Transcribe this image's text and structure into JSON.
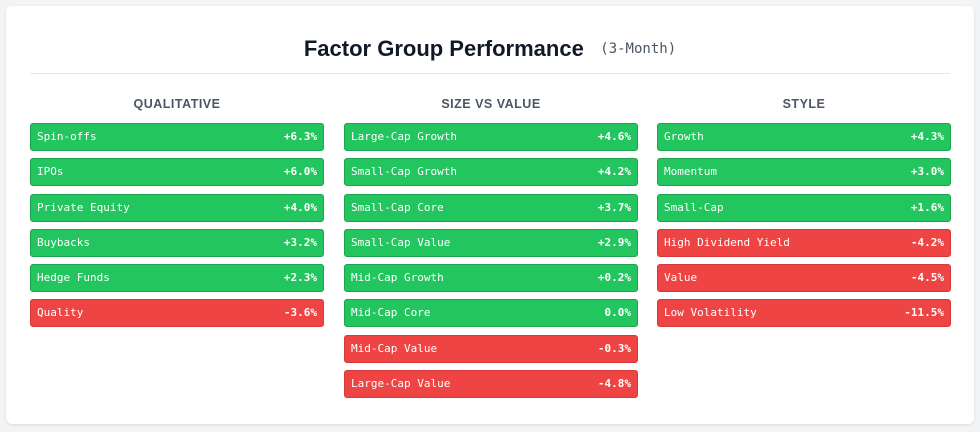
{
  "title": "Factor Group Performance",
  "subtitle": "(3-Month)",
  "colors": {
    "positive": "#22c55e",
    "negative": "#ef4444"
  },
  "chart_data": {
    "type": "table",
    "title": "Factor Group Performance",
    "subtitle": "(3-Month)",
    "groups": [
      {
        "name": "QUALITATIVE",
        "items": [
          {
            "label": "Spin-offs",
            "value": 6.3,
            "display": "+6.3%"
          },
          {
            "label": "IPOs",
            "value": 6.0,
            "display": "+6.0%"
          },
          {
            "label": "Private Equity",
            "value": 4.0,
            "display": "+4.0%"
          },
          {
            "label": "Buybacks",
            "value": 3.2,
            "display": "+3.2%"
          },
          {
            "label": "Hedge Funds",
            "value": 2.3,
            "display": "+2.3%"
          },
          {
            "label": "Quality",
            "value": -3.6,
            "display": "-3.6%"
          }
        ]
      },
      {
        "name": "SIZE VS VALUE",
        "items": [
          {
            "label": "Large-Cap Growth",
            "value": 4.6,
            "display": "+4.6%"
          },
          {
            "label": "Small-Cap Growth",
            "value": 4.2,
            "display": "+4.2%"
          },
          {
            "label": "Small-Cap Core",
            "value": 3.7,
            "display": "+3.7%"
          },
          {
            "label": "Small-Cap Value",
            "value": 2.9,
            "display": "+2.9%"
          },
          {
            "label": "Mid-Cap Growth",
            "value": 0.2,
            "display": "+0.2%"
          },
          {
            "label": "Mid-Cap Core",
            "value": 0.0,
            "display": "0.0%"
          },
          {
            "label": "Mid-Cap Value",
            "value": -0.3,
            "display": "-0.3%"
          },
          {
            "label": "Large-Cap Value",
            "value": -4.8,
            "display": "-4.8%"
          }
        ]
      },
      {
        "name": "STYLE",
        "items": [
          {
            "label": "Growth",
            "value": 4.3,
            "display": "+4.3%"
          },
          {
            "label": "Momentum",
            "value": 3.0,
            "display": "+3.0%"
          },
          {
            "label": "Small-Cap",
            "value": 1.6,
            "display": "+1.6%"
          },
          {
            "label": "High Dividend Yield",
            "value": -4.2,
            "display": "-4.2%"
          },
          {
            "label": "Value",
            "value": -4.5,
            "display": "-4.5%"
          },
          {
            "label": "Low Volatility",
            "value": -11.5,
            "display": "-11.5%"
          }
        ]
      }
    ]
  }
}
